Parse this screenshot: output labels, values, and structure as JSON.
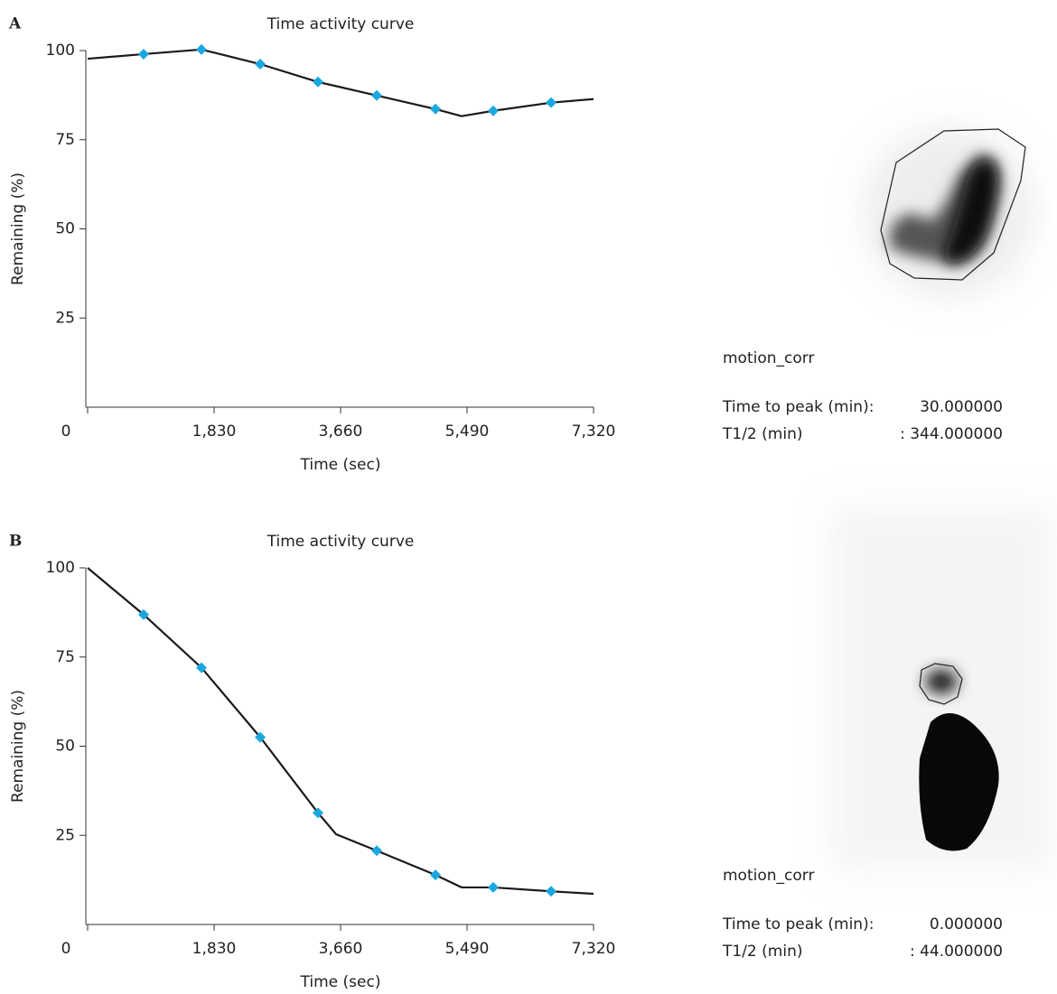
{
  "chart_data": [
    {
      "type": "line",
      "title": "Time activity curve",
      "x_label": "Time (sec)",
      "y_label": "Remaining (%)",
      "xlim": [
        0,
        7320
      ],
      "xticks": [
        0,
        {
          "value": 1830,
          "label": "1,830"
        },
        {
          "value": 3660,
          "label": "3,660"
        },
        {
          "value": 5490,
          "label": "5,490"
        },
        {
          "value": 7320,
          "label": "7,320"
        }
      ],
      "ylim": [
        0,
        100
      ],
      "yticks": [
        25,
        50,
        75,
        100
      ],
      "series": [
        {
          "color": "#1a1a1a",
          "x": [
            0,
            810,
            1647,
            2497,
            3333,
            4183,
            5033,
            5411,
            5869,
            6706,
            7320
          ],
          "values": [
            97.7,
            99.0,
            100.3,
            96.2,
            91.2,
            87.4,
            83.6,
            81.6,
            83.1,
            85.4,
            86.4
          ]
        },
        {
          "color": "#1aa7e0",
          "marker": "diamond",
          "x": [
            810,
            1647,
            2497,
            3333,
            4183,
            5033,
            5869,
            6706
          ],
          "values": [
            99.0,
            100.3,
            96.2,
            91.2,
            87.4,
            83.6,
            83.1,
            85.4
          ]
        }
      ]
    },
    {
      "type": "line",
      "title": "Time activity curve",
      "x_label": "Time (sec)",
      "y_label": "Remaining (%)",
      "xlim": [
        0,
        7320
      ],
      "xticks": [
        0,
        {
          "value": 1830,
          "label": "1,830"
        },
        {
          "value": 3660,
          "label": "3,660"
        },
        {
          "value": 5490,
          "label": "5,490"
        },
        {
          "value": 7320,
          "label": "7,320"
        }
      ],
      "ylim": [
        0,
        100
      ],
      "yticks": [
        25,
        50,
        75,
        100
      ],
      "series": [
        {
          "color": "#1a1a1a",
          "x": [
            0,
            810,
            1647,
            2497,
            3333,
            3595,
            4183,
            5033,
            5411,
            5869,
            6706,
            7320
          ],
          "values": [
            100,
            86.9,
            72.0,
            52.5,
            31.3,
            25.3,
            20.7,
            13.9,
            10.4,
            10.4,
            9.3,
            8.6
          ]
        },
        {
          "color": "#1aa7e0",
          "marker": "diamond",
          "x": [
            810,
            1647,
            2497,
            3333,
            4183,
            5033,
            5869,
            6706
          ],
          "values": [
            86.9,
            72.0,
            52.5,
            31.3,
            20.7,
            13.9,
            10.4,
            9.3
          ]
        }
      ]
    }
  ],
  "panels": [
    {
      "label": "A",
      "caption": "motion_corr",
      "peak_label": "Time to peak (min):",
      "peak_value": "30.000000",
      "half_label": "T1/2 (min)",
      "half_value": ": 344.000000"
    },
    {
      "label": "B",
      "caption": "motion_corr",
      "peak_label": "Time to peak (min):",
      "peak_value": "0.000000",
      "half_label": "T1/2 (min)",
      "half_value": ": 44.000000"
    }
  ]
}
